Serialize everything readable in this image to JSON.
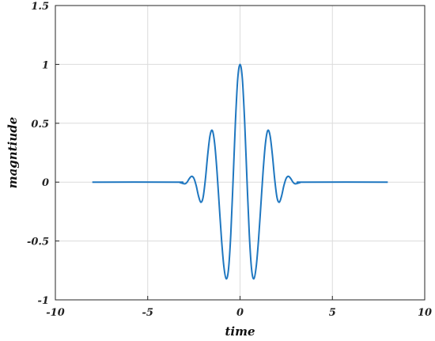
{
  "chart_data": {
    "type": "line",
    "title": "",
    "xlabel": "time",
    "ylabel": "magntiude",
    "xlim": [
      -10,
      10
    ],
    "ylim": [
      -1,
      1.5
    ],
    "xticks": [
      -10,
      -5,
      0,
      5,
      10
    ],
    "yticks": [
      -1,
      -0.5,
      0,
      0.5,
      1,
      1.5
    ],
    "xtick_labels": [
      "-10",
      "-5",
      "0",
      "5",
      "10"
    ],
    "ytick_labels": [
      "-1",
      "-0.5",
      "0",
      "0.5",
      "1",
      "1.5"
    ],
    "grid": true,
    "legend": "none",
    "series": [
      {
        "color": "#1f77c0",
        "x": [
          -8,
          -3.5,
          -3.25,
          -3,
          -2.875,
          -2.75,
          -2.625,
          -2.5,
          -2.375,
          -2.25,
          -2.125,
          -2,
          -1.875,
          -1.75,
          -1.625,
          -1.5,
          -1.375,
          -1.25,
          -1.125,
          -1,
          -0.875,
          -0.75,
          -0.625,
          -0.5,
          -0.375,
          -0.25,
          -0.125,
          0,
          0.125,
          0.25,
          0.375,
          0.5,
          0.625,
          0.75,
          0.875,
          1,
          1.125,
          1.25,
          1.375,
          1.5,
          1.625,
          1.75,
          1.875,
          2,
          2.125,
          2.25,
          2.375,
          2.5,
          2.625,
          2.75,
          2.875,
          3,
          3.25,
          3.5,
          8
        ],
        "y": [
          0,
          0,
          -0.004,
          -0.015,
          -0.002,
          0.029,
          0.049,
          0.033,
          -0.029,
          -0.117,
          -0.171,
          -0.129,
          0.026,
          0.234,
          0.396,
          0.438,
          0.329,
          0.096,
          -0.201,
          -0.492,
          -0.718,
          -0.821,
          -0.74,
          -0.441,
          0.021,
          0.512,
          0.878,
          1,
          0.878,
          0.512,
          0.021,
          -0.441,
          -0.74,
          -0.821,
          -0.718,
          -0.492,
          -0.201,
          0.096,
          0.329,
          0.438,
          0.396,
          0.234,
          0.026,
          -0.129,
          -0.171,
          -0.117,
          -0.029,
          0.033,
          0.049,
          0.029,
          -0.002,
          -0.015,
          -0.004,
          0,
          0
        ]
      }
    ]
  }
}
